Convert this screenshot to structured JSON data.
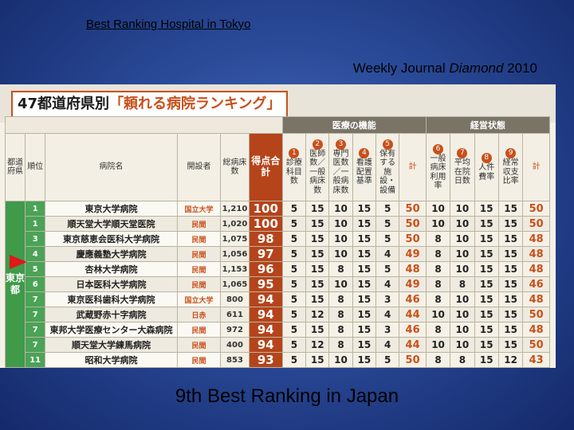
{
  "slide": {
    "title": "Best Ranking Hospital in Tokyo",
    "source_prefix": "Weekly Journal ",
    "source_italic": "Diamond",
    "source_suffix": " 2010",
    "subtitle": "9th Best Ranking in Japan"
  },
  "scan": {
    "banner_prefix": "47都道府県別",
    "banner_title": "「頼れる病院ランキング」",
    "group_medical": "医療の機能",
    "group_management": "経営状態",
    "headers": {
      "pref": "都道府県",
      "rank": "順位",
      "name": "病院名",
      "founder": "開設者",
      "beds": "総病床数",
      "score": "得点合計",
      "m1": "診療科目数",
      "m2": "医師数／一般病床数",
      "m3": "専門医数／一般病床数",
      "m4": "看護配置基準",
      "m5": "保有する施設・設備",
      "msum": "計",
      "g6": "一般病床利用率",
      "g7": "平均在院日数",
      "g8": "人件費率",
      "g9": "経常収支比率",
      "gsum": "計",
      "n1": "1",
      "n2": "2",
      "n3": "3",
      "n4": "4",
      "n5": "5",
      "n6": "6",
      "n7": "7",
      "n8": "8",
      "n9": "9"
    },
    "prefecture": "東京都",
    "rows": [
      {
        "rank": "1",
        "name": "東京大学病院",
        "founder": "国立大学",
        "beds": "1,210",
        "score": "100",
        "m1": "5",
        "m2": "15",
        "m3": "10",
        "m4": "15",
        "m5": "5",
        "msum": "50",
        "g6": "10",
        "g7": "10",
        "g8": "15",
        "g9": "15",
        "gsum": "50"
      },
      {
        "rank": "1",
        "name": "順天堂大学順天堂医院",
        "founder": "民間",
        "beds": "1,020",
        "score": "100",
        "m1": "5",
        "m2": "15",
        "m3": "10",
        "m4": "15",
        "m5": "5",
        "msum": "50",
        "g6": "10",
        "g7": "10",
        "g8": "15",
        "g9": "15",
        "gsum": "50"
      },
      {
        "rank": "3",
        "name": "東京慈恵会医科大学病院",
        "founder": "民間",
        "beds": "1,075",
        "score": "98",
        "m1": "5",
        "m2": "15",
        "m3": "10",
        "m4": "15",
        "m5": "5",
        "msum": "50",
        "g6": "8",
        "g7": "10",
        "g8": "15",
        "g9": "15",
        "gsum": "48"
      },
      {
        "rank": "4",
        "name": "慶應義塾大学病院",
        "founder": "民間",
        "beds": "1,056",
        "score": "97",
        "m1": "5",
        "m2": "15",
        "m3": "10",
        "m4": "15",
        "m5": "4",
        "msum": "49",
        "g6": "8",
        "g7": "10",
        "g8": "15",
        "g9": "15",
        "gsum": "48"
      },
      {
        "rank": "5",
        "name": "杏林大学病院",
        "founder": "民間",
        "beds": "1,153",
        "score": "96",
        "m1": "5",
        "m2": "15",
        "m3": "8",
        "m4": "15",
        "m5": "5",
        "msum": "48",
        "g6": "8",
        "g7": "10",
        "g8": "15",
        "g9": "15",
        "gsum": "48"
      },
      {
        "rank": "6",
        "name": "日本医科大学病院",
        "founder": "民間",
        "beds": "1,065",
        "score": "95",
        "m1": "5",
        "m2": "15",
        "m3": "10",
        "m4": "15",
        "m5": "4",
        "msum": "49",
        "g6": "8",
        "g7": "8",
        "g8": "15",
        "g9": "15",
        "gsum": "46"
      },
      {
        "rank": "7",
        "name": "東京医科歯科大学病院",
        "founder": "国立大学",
        "beds": "800",
        "score": "94",
        "m1": "5",
        "m2": "15",
        "m3": "8",
        "m4": "15",
        "m5": "3",
        "msum": "46",
        "g6": "8",
        "g7": "10",
        "g8": "15",
        "g9": "15",
        "gsum": "48"
      },
      {
        "rank": "7",
        "name": "武蔵野赤十字病院",
        "founder": "日赤",
        "beds": "611",
        "score": "94",
        "m1": "5",
        "m2": "12",
        "m3": "8",
        "m4": "15",
        "m5": "4",
        "msum": "44",
        "g6": "10",
        "g7": "10",
        "g8": "15",
        "g9": "15",
        "gsum": "50"
      },
      {
        "rank": "7",
        "name": "東邦大学医療センター大森病院",
        "founder": "民間",
        "beds": "972",
        "score": "94",
        "m1": "5",
        "m2": "15",
        "m3": "8",
        "m4": "15",
        "m5": "3",
        "msum": "46",
        "g6": "8",
        "g7": "10",
        "g8": "15",
        "g9": "15",
        "gsum": "48"
      },
      {
        "rank": "7",
        "name": "順天堂大学練馬病院",
        "founder": "民間",
        "beds": "400",
        "score": "94",
        "m1": "5",
        "m2": "12",
        "m3": "8",
        "m4": "15",
        "m5": "4",
        "msum": "44",
        "g6": "10",
        "g7": "10",
        "g8": "15",
        "g9": "15",
        "gsum": "50"
      },
      {
        "rank": "11",
        "name": "昭和大学病院",
        "founder": "民間",
        "beds": "853",
        "score": "93",
        "m1": "5",
        "m2": "15",
        "m3": "10",
        "m4": "15",
        "m5": "5",
        "msum": "50",
        "g6": "8",
        "g7": "8",
        "g8": "15",
        "g9": "12",
        "gsum": "43"
      }
    ]
  }
}
